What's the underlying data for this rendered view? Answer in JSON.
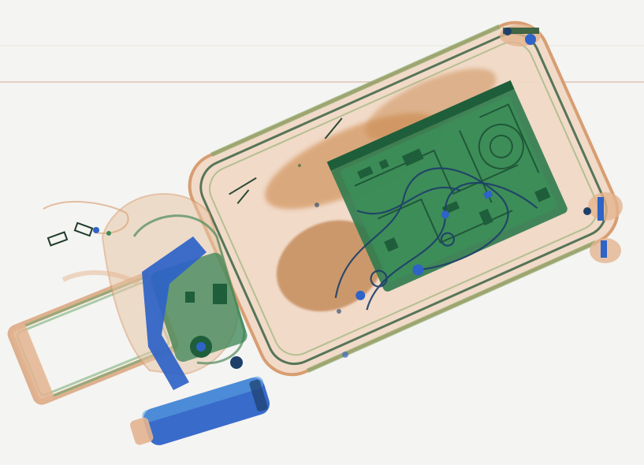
{
  "scan": {
    "background": "#f4f4f2",
    "palette": {
      "organic": "#c8864a",
      "organic_light": "#e8c7a8",
      "mixed": "#3f8a52",
      "mixed_dark": "#1f5e3a",
      "inorganic": "#2e63c8",
      "inorganic_light": "#5aa0e0",
      "scanline": "#b8734a"
    },
    "objects": [
      "suitcase",
      "laptop",
      "cables",
      "telescopic-handle",
      "handbag",
      "bottle",
      "wheels",
      "small-items"
    ]
  }
}
